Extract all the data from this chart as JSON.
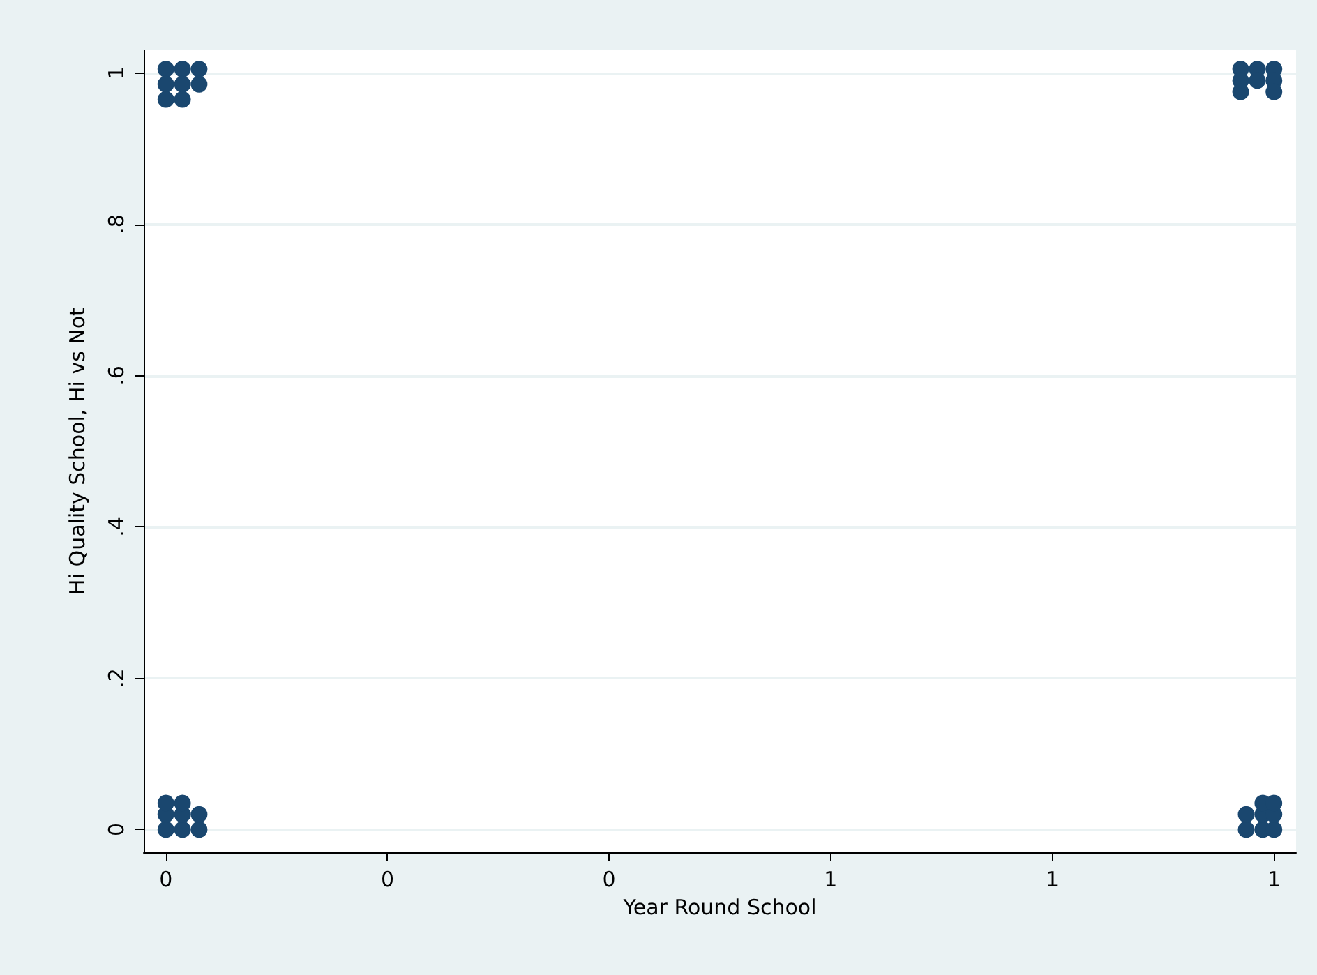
{
  "chart_data": {
    "type": "scatter",
    "xlabel": "Year Round School",
    "ylabel": "Hi Quality School, Hi vs Not",
    "x": [
      0,
      0.015,
      0.03,
      0,
      0.015,
      0.03,
      0,
      0.015,
      0,
      0.015,
      0.03,
      0,
      0.015,
      0.03,
      0,
      0.015,
      0.975,
      0.99,
      1.0,
      0.975,
      0.99,
      1.0,
      0.99,
      1.0,
      0.97,
      0.985,
      1.0,
      0.97,
      0.985,
      1.0,
      0.97,
      1.0
    ],
    "series": [
      {
        "color": "#1a476f",
        "values": [
          1.005,
          1.005,
          1.005,
          0.985,
          0.985,
          0.985,
          0.965,
          0.965,
          0,
          0,
          0,
          0.02,
          0.02,
          0.02,
          0.035,
          0.035,
          0,
          0,
          0,
          0.02,
          0.02,
          0.02,
          0.035,
          0.035,
          1.005,
          1.005,
          1.005,
          0.99,
          0.99,
          0.99,
          0.975,
          0.975
        ]
      }
    ],
    "xlim": [
      -0.02,
      1.02
    ],
    "ylim": [
      -0.03,
      1.03
    ],
    "xticks": [
      {
        "value": 0,
        "label": "0"
      },
      {
        "value": 0.2,
        "label": "0"
      },
      {
        "value": 0.4,
        "label": "0"
      },
      {
        "value": 0.6,
        "label": "1"
      },
      {
        "value": 0.8,
        "label": "1"
      },
      {
        "value": 1,
        "label": "1"
      }
    ],
    "yticks": [
      {
        "value": 0,
        "label": "0"
      },
      {
        "value": 0.2,
        "label": ".2"
      },
      {
        "value": 0.4,
        "label": ".4"
      },
      {
        "value": 0.6,
        "label": ".6"
      },
      {
        "value": 0.8,
        "label": ".8"
      },
      {
        "value": 1,
        "label": "1"
      }
    ],
    "grid": "y",
    "marker": "circle"
  }
}
